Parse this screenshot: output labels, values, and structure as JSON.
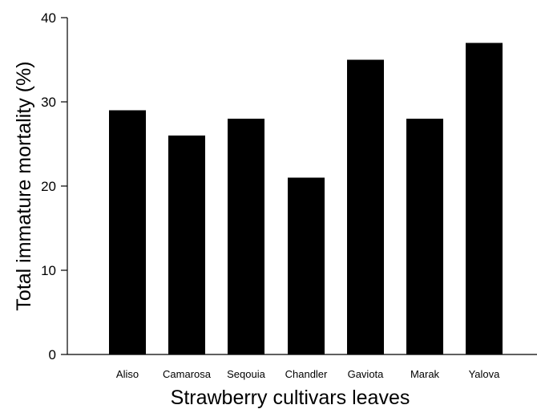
{
  "chart_data": {
    "type": "bar",
    "categories": [
      "Aliso",
      "Camarosa",
      "Seqouia",
      "Chandler",
      "Gaviota",
      "Marak",
      "Yalova"
    ],
    "values": [
      29,
      26,
      28,
      21,
      35,
      28,
      37
    ],
    "xlabel": "Strawberry cultivars leaves",
    "ylabel": "Total immature mortality (%)",
    "ylim": [
      0,
      40
    ],
    "yticks": [
      "0",
      "10",
      "20",
      "30",
      "40"
    ],
    "grid": false,
    "bar_color": "#000000"
  }
}
